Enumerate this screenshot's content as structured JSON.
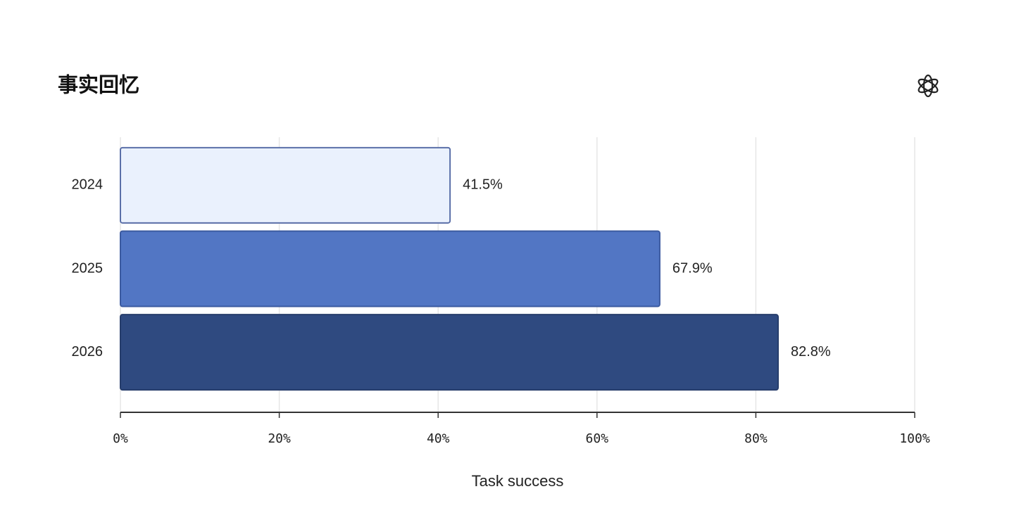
{
  "chart_data": {
    "type": "bar",
    "orientation": "horizontal",
    "title": "事实回忆",
    "categories": [
      "2024",
      "2025",
      "2026"
    ],
    "values": [
      41.5,
      67.9,
      82.8
    ],
    "value_labels": [
      "41.5%",
      "67.9%",
      "82.8%"
    ],
    "colors": [
      "#eaf1fd",
      "#5276c4",
      "#2f4a80"
    ],
    "xlabel": "Task success",
    "xlim": [
      0,
      100
    ],
    "xticks": [
      {
        "value": 0,
        "label": "0%"
      },
      {
        "value": 20,
        "label": "20%"
      },
      {
        "value": 40,
        "label": "40%"
      },
      {
        "value": 60,
        "label": "60%"
      },
      {
        "value": 80,
        "label": "80%"
      },
      {
        "value": 100,
        "label": "100%"
      }
    ],
    "grid": true
  }
}
